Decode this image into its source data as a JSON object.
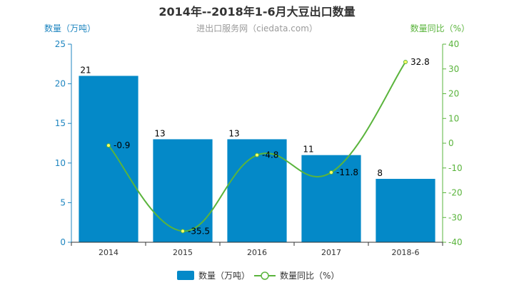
{
  "chart_data": {
    "type": "bar",
    "title": "2014年--2018年1-6月大豆出口数量",
    "subtitle": "进出口服务网（ciedata.com）",
    "categories": [
      "2014",
      "2015",
      "2016",
      "2017",
      "2018-6"
    ],
    "series": [
      {
        "name": "数量（万吨）",
        "type": "bar",
        "axis": "left",
        "color": "#0489c8",
        "values": [
          21,
          13,
          13,
          11,
          8
        ]
      },
      {
        "name": "数量同比（%）",
        "type": "line",
        "axis": "right",
        "color": "#5ab43c",
        "values": [
          -0.9,
          -35.5,
          -4.8,
          -11.8,
          32.8
        ]
      }
    ],
    "ylabel": "数量（万吨）",
    "ylabel_right": "数量同比（%）",
    "ylim": [
      0,
      25
    ],
    "yticks": [
      0,
      5,
      10,
      15,
      20,
      25
    ],
    "ylim_right": [
      -40,
      40
    ],
    "yticks_right": [
      -40,
      -30,
      -20,
      -10,
      0,
      10,
      20,
      30,
      40
    ],
    "grid": false,
    "legend": "bottom",
    "axis_colors": {
      "left": "#1f86c0",
      "right": "#5ab43c"
    }
  }
}
